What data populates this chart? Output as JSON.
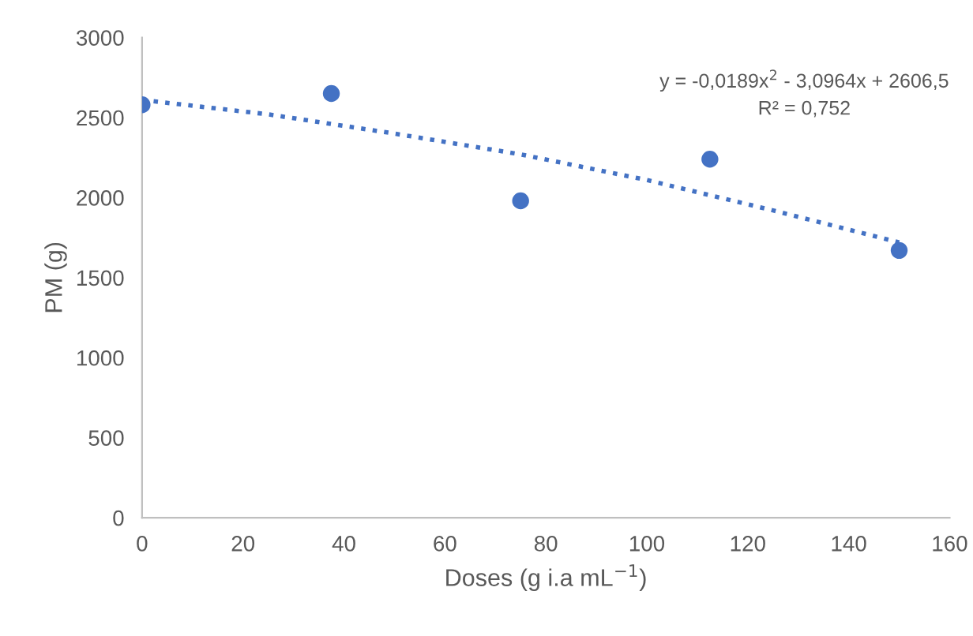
{
  "chart_data": {
    "type": "scatter",
    "xlabel": "Doses (g i.a mL$^{−1}$)",
    "ylabel": "PM (g)",
    "annotations": [
      "y = -0,0189x$^{2}$ - 3,0964x + 2606,5",
      "R² = 0,752"
    ],
    "x": [
      0,
      37.5,
      75,
      112.5,
      150
    ],
    "series": [
      {
        "color": "#4472c4",
        "marker": "circle",
        "values": [
          2580,
          2650,
          1980,
          2240,
          1670
        ]
      },
      {
        "type": "line",
        "color": "#4472c4",
        "line_style": "dotted",
        "marker": "none",
        "x": [
          0,
          25,
          50,
          75,
          100,
          125,
          150
        ],
        "values": [
          2610,
          2520,
          2400,
          2270,
          2110,
          1920,
          1720
        ]
      }
    ],
    "xlim": [
      0,
      160
    ],
    "xticks": [
      0,
      20,
      40,
      60,
      80,
      100,
      120,
      140,
      160
    ],
    "ylim": [
      0,
      3000
    ],
    "yticks": [
      0,
      500,
      1000,
      1500,
      2000,
      2500,
      3000
    ],
    "grid": false,
    "legend": false
  }
}
